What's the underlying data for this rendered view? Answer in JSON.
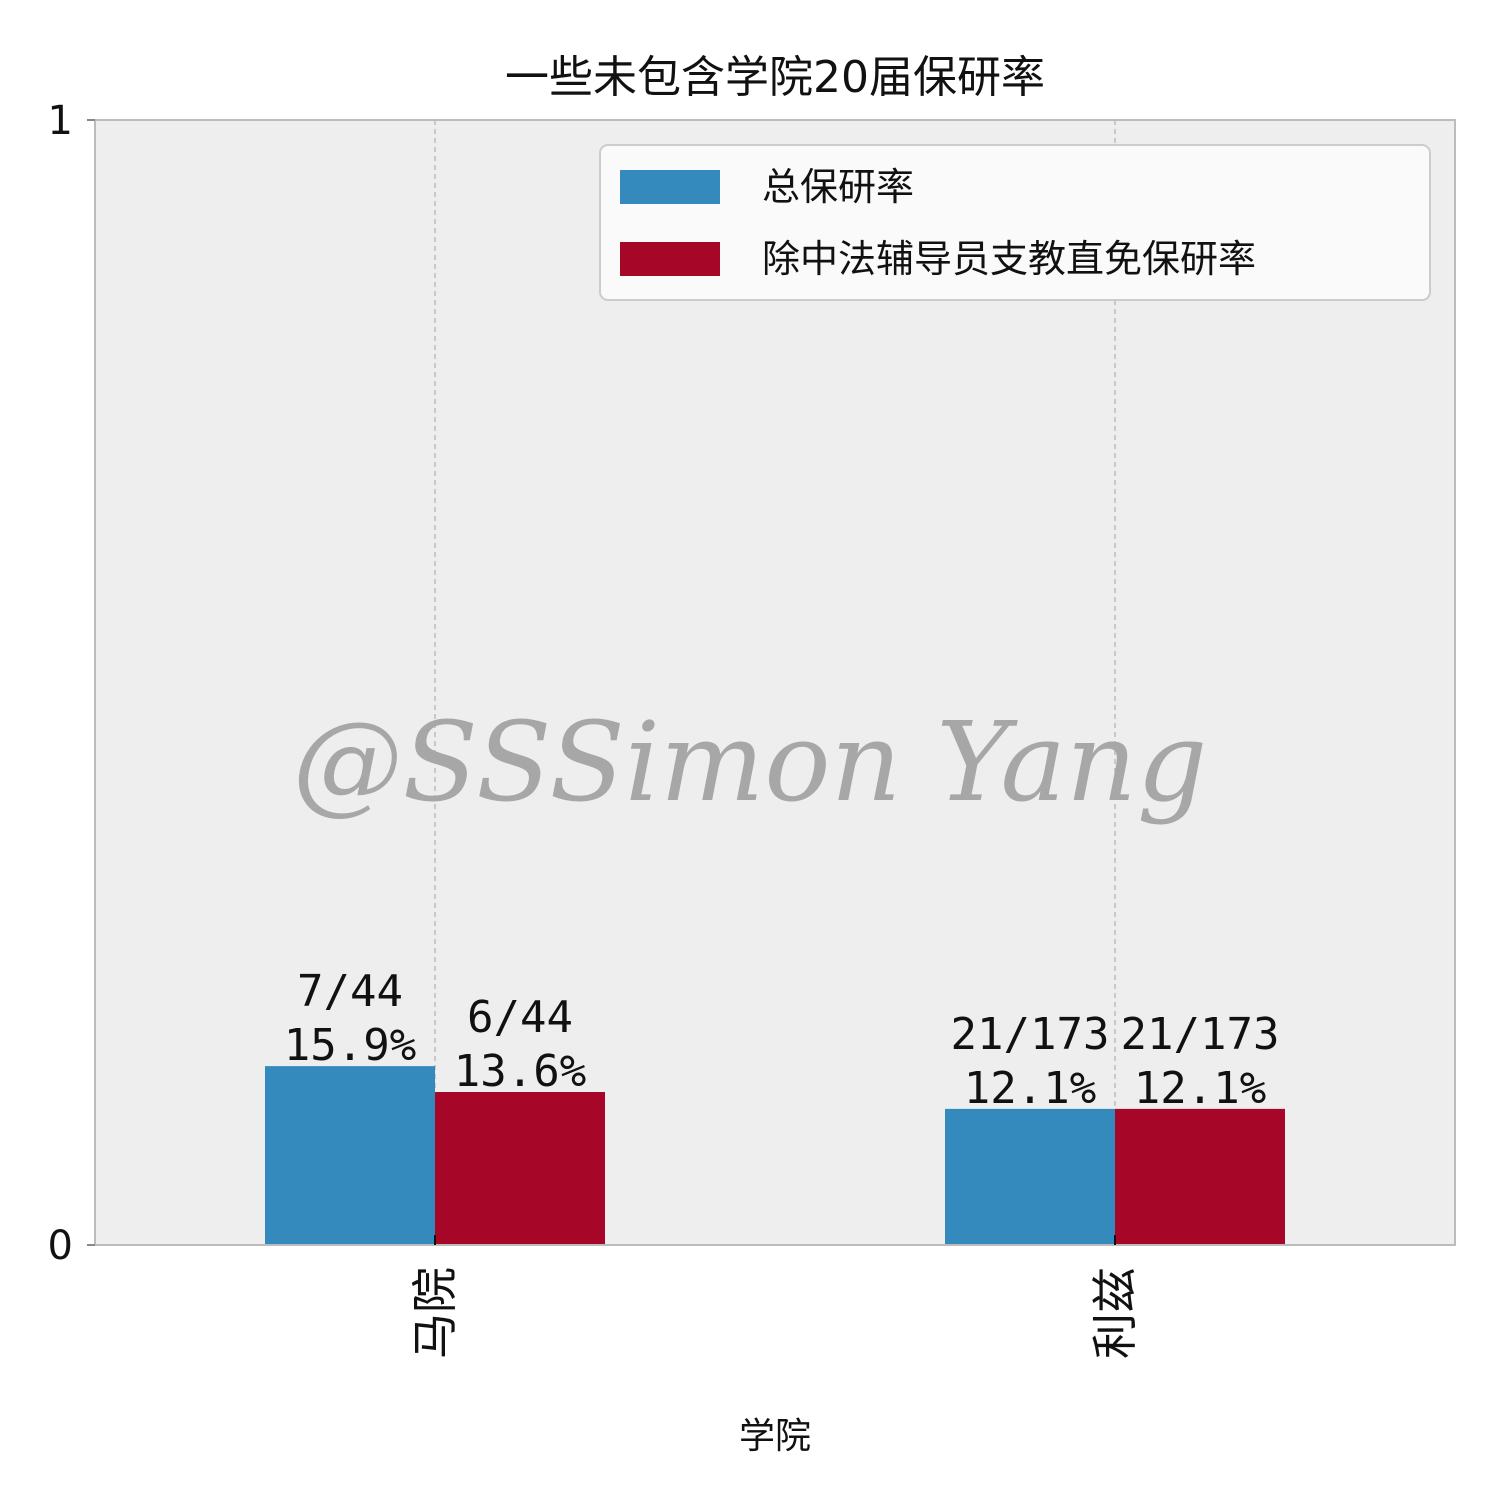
{
  "chart_data": {
    "type": "bar",
    "title": "一些未包含学院20届保研率",
    "xlabel": "学院",
    "ylabel": "",
    "ylim": [
      0,
      1
    ],
    "yticks": [
      "0",
      "1"
    ],
    "grid": true,
    "legend_position": "top-right",
    "categories": [
      "马院",
      "利兹"
    ],
    "series": [
      {
        "name": "总保研率",
        "color": "#348abd",
        "values": [
          0.159,
          0.121
        ],
        "fractions": [
          "7/44",
          "21/173"
        ],
        "percents": [
          "15.9%",
          "12.1%"
        ]
      },
      {
        "name": "除中法辅导员支教直免保研率",
        "color": "#a60628",
        "values": [
          0.136,
          0.121
        ],
        "fractions": [
          "6/44",
          "21/173"
        ],
        "percents": [
          "13.6%",
          "12.1%"
        ]
      }
    ]
  },
  "watermark": "@SSSimon Yang",
  "colors": {
    "plot_background": "#eeeeee",
    "axes_edge": "#bcbcbc",
    "grid": "#b0b0b0"
  }
}
